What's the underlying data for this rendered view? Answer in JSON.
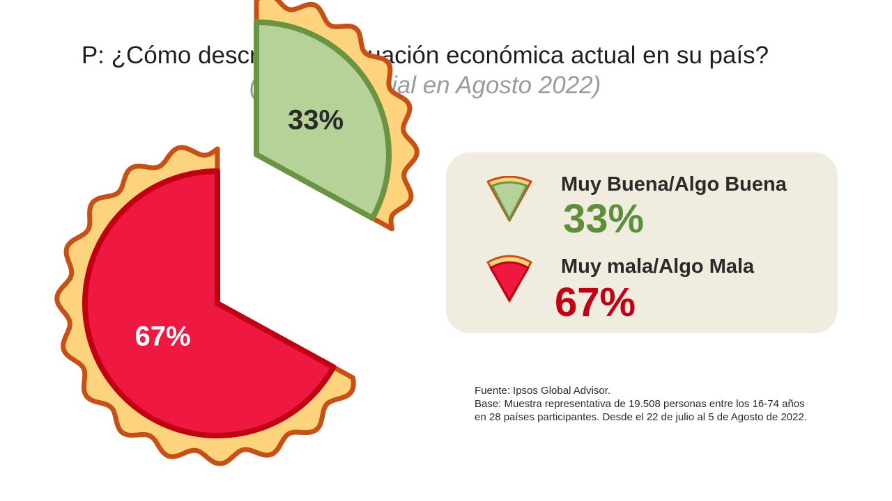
{
  "title": {
    "main": "P: ¿Cómo describiría la situación económica actual en su país?",
    "subtitle": "(Media mundial en Agosto 2022)"
  },
  "chart_data": {
    "type": "pie",
    "categories": [
      "Muy Buena/Algo Buena",
      "Muy mala/Algo Mala"
    ],
    "values": [
      33,
      67
    ],
    "unit": "%",
    "data_labels": [
      "33%",
      "67%"
    ],
    "colors": [
      "#b5d398",
      "#ef1840"
    ],
    "border_colors": [
      "#6a9441",
      "#c00012"
    ],
    "crust_color": "#fdd47d",
    "crust_border": "#c65016"
  },
  "legend": {
    "items": [
      {
        "label": "Muy Buena/Algo Buena",
        "value": "33%",
        "color": "#5d8f3a",
        "icon": "green-pie-slice-icon"
      },
      {
        "label": "Muy mala/Algo Mala",
        "value": "67%",
        "color": "#c00012",
        "icon": "red-pie-slice-icon"
      }
    ]
  },
  "source": {
    "line1": "Fuente: Ipsos Global Advisor.",
    "line2": "Base: Muestra representativa de 19.508 personas entre los 16-74 años en 28 países participantes. Desde el 22 de julio al 5 de Agosto de 2022."
  }
}
